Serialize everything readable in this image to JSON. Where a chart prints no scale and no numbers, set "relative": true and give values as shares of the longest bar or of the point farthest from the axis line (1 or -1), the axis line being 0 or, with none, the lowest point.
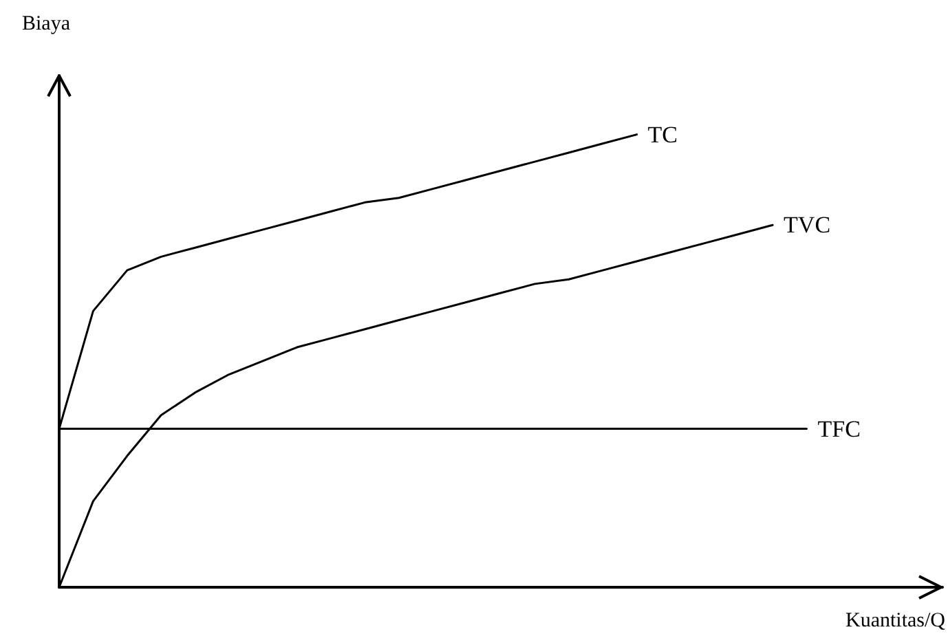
{
  "chart_data": {
    "type": "line",
    "relative": true,
    "xlabel": "Kuantitas/Q",
    "ylabel": "Biaya",
    "marker": "none",
    "line_style": "solid",
    "grid": false,
    "legend": false,
    "categories": [
      null,
      null,
      null,
      null,
      null,
      null,
      null,
      null,
      null,
      null,
      null,
      null,
      null,
      null,
      null,
      null,
      null,
      null,
      null,
      null,
      null,
      null,
      null,
      null,
      null,
      null,
      null
    ],
    "series": [
      {
        "name": "TC",
        "color": "#000000",
        "values": [
          0.35,
          0.61,
          0.7,
          0.73,
          0.75,
          0.77,
          0.79,
          0.81,
          0.83,
          0.85,
          0.86,
          0.88,
          0.9,
          0.92,
          0.94,
          0.96,
          0.98,
          1,
          null,
          null,
          null,
          null,
          null,
          null,
          null,
          null,
          null
        ]
      },
      {
        "name": "TVC",
        "color": "#000000",
        "values": [
          0,
          0.19,
          0.29,
          0.38,
          0.43,
          0.47,
          0.5,
          0.53,
          0.55,
          0.57,
          0.59,
          0.61,
          0.63,
          0.65,
          0.67,
          0.68,
          0.7,
          0.72,
          0.74,
          0.76,
          0.78,
          0.8,
          null,
          null,
          null,
          null,
          null
        ]
      },
      {
        "name": "TFC",
        "color": "#000000",
        "values": [
          0.35,
          0.35,
          0.35,
          0.35,
          0.35,
          0.35,
          0.35,
          0.35,
          0.35,
          0.35,
          0.35,
          0.35,
          0.35,
          0.35,
          0.35,
          0.35,
          0.35,
          0.35,
          0.35,
          0.35,
          0.35,
          0.35,
          0.35,
          null,
          null,
          null,
          null
        ]
      }
    ]
  }
}
